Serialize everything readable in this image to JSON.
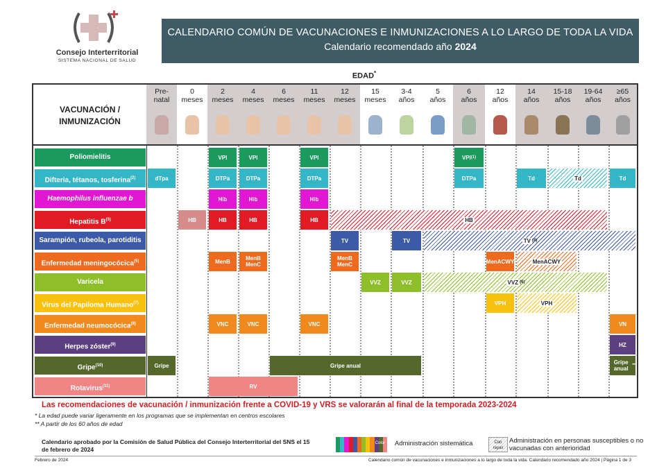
{
  "logo": {
    "name": "Consejo Interterritorial",
    "subtitle": "SISTEMA NACIONAL DE SALUD"
  },
  "title": {
    "line1": "CALENDARIO COMÚN DE VACUNACIONES E INMUNIZACIONES A LO LARGO DE TODA LA VIDA",
    "line2_prefix": "Calendario recomendado año",
    "line2_year": "2024"
  },
  "edad_label": "EDAD",
  "edad_mark": "*",
  "header_label_1": "VACUNACIÓN /",
  "header_label_2": "INMUNIZACIÓN",
  "columns": [
    {
      "l1": "Pre-",
      "l2": "natal"
    },
    {
      "l1": "0",
      "l2": "meses"
    },
    {
      "l1": "2",
      "l2": "meses"
    },
    {
      "l1": "4",
      "l2": "meses"
    },
    {
      "l1": "6",
      "l2": "meses"
    },
    {
      "l1": "11",
      "l2": "meses"
    },
    {
      "l1": "12",
      "l2": "meses"
    },
    {
      "l1": "15",
      "l2": "meses"
    },
    {
      "l1": "3-4",
      "l2": "años"
    },
    {
      "l1": "5",
      "l2": "años"
    },
    {
      "l1": "6",
      "l2": "años"
    },
    {
      "l1": "12",
      "l2": "años"
    },
    {
      "l1": "14",
      "l2": "años"
    },
    {
      "l1": "15-18",
      "l2": "años"
    },
    {
      "l1": "19-64",
      "l2": "años"
    },
    {
      "l1": "≥65",
      "l2": "años"
    }
  ],
  "rows": [
    {
      "label": "Poliomielitis",
      "sup": "",
      "color": "#1a9a5c"
    },
    {
      "label": "Difteria, tétanos, tosferina",
      "sup": "(2)",
      "color": "#35b6c6"
    },
    {
      "label": "Haemophilus influenzae b",
      "sup": "",
      "color": "#e117d3"
    },
    {
      "label": "Hepatitis B",
      "sup": "(3)",
      "color": "#e11b24"
    },
    {
      "label": "Sarampión, rubeola, parotiditis",
      "sup": "",
      "color": "#3d5aa8"
    },
    {
      "label": "Enfermedad meningocócica",
      "sup": "(5)",
      "color": "#ee6a1e"
    },
    {
      "label": "Varicela",
      "sup": "",
      "color": "#8ebf2b"
    },
    {
      "label": "Virus del Papiloma Humano",
      "sup": "(7)",
      "color": "#f8c10e"
    },
    {
      "label": "Enfermedad neumocócica",
      "sup": "(8)",
      "color": "#f08a1c"
    },
    {
      "label": "Herpes zóster",
      "sup": "(9)",
      "color": "#5c3f81"
    },
    {
      "label": "Gripe",
      "sup": "(10)",
      "color": "#56672c"
    },
    {
      "label": "Rotavirus",
      "sup": "(11)",
      "color": "#ef8585"
    }
  ],
  "cells": [
    {
      "row": 0,
      "from": 2,
      "to": 2,
      "text": "VPI",
      "sup": ""
    },
    {
      "row": 0,
      "from": 3,
      "to": 3,
      "text": "VPI",
      "sup": ""
    },
    {
      "row": 0,
      "from": 5,
      "to": 5,
      "text": "VPI",
      "sup": ""
    },
    {
      "row": 0,
      "from": 10,
      "to": 10,
      "text": "VPI",
      "sup": "(1)"
    },
    {
      "row": 1,
      "from": 0,
      "to": 0,
      "text": "dTpa",
      "sup": ""
    },
    {
      "row": 1,
      "from": 2,
      "to": 2,
      "text": "DTPa",
      "sup": ""
    },
    {
      "row": 1,
      "from": 3,
      "to": 3,
      "text": "DTPa",
      "sup": ""
    },
    {
      "row": 1,
      "from": 5,
      "to": 5,
      "text": "DTPa",
      "sup": ""
    },
    {
      "row": 1,
      "from": 10,
      "to": 10,
      "text": "DTPa",
      "sup": ""
    },
    {
      "row": 1,
      "from": 12,
      "to": 12,
      "text": "Td",
      "sup": ""
    },
    {
      "row": 1,
      "from": 13,
      "to": 14,
      "text": "Td",
      "sup": "",
      "striped": true
    },
    {
      "row": 1,
      "from": 15,
      "to": 15,
      "text": "Td",
      "sup": ""
    },
    {
      "row": 2,
      "from": 2,
      "to": 2,
      "text": "Hib",
      "sup": ""
    },
    {
      "row": 2,
      "from": 3,
      "to": 3,
      "text": "Hib",
      "sup": ""
    },
    {
      "row": 2,
      "from": 5,
      "to": 5,
      "text": "Hib",
      "sup": ""
    },
    {
      "row": 3,
      "from": 1,
      "to": 1,
      "text": "HB",
      "sup": "",
      "light": true
    },
    {
      "row": 3,
      "from": 2,
      "to": 2,
      "text": "HB",
      "sup": ""
    },
    {
      "row": 3,
      "from": 3,
      "to": 3,
      "text": "HB",
      "sup": ""
    },
    {
      "row": 3,
      "from": 5,
      "to": 5,
      "text": "HB",
      "sup": ""
    },
    {
      "row": 3,
      "from": 6,
      "to": 14,
      "text": "HB",
      "sup": "",
      "striped": true
    },
    {
      "row": 4,
      "from": 6,
      "to": 6,
      "text": "TV",
      "sup": ""
    },
    {
      "row": 4,
      "from": 8,
      "to": 8,
      "text": "TV",
      "sup": ""
    },
    {
      "row": 4,
      "from": 9,
      "to": 15,
      "text": "TV",
      "sup": "(4)",
      "striped": true
    },
    {
      "row": 5,
      "from": 2,
      "to": 2,
      "text": "MenB",
      "sup": ""
    },
    {
      "row": 5,
      "from": 3,
      "to": 3,
      "text": "MenB MenC",
      "sup": ""
    },
    {
      "row": 5,
      "from": 6,
      "to": 6,
      "text": "MenB MenC",
      "sup": ""
    },
    {
      "row": 5,
      "from": 11,
      "to": 11,
      "text": "MenACWY",
      "sup": ""
    },
    {
      "row": 5,
      "from": 12,
      "to": 13,
      "text": "MenACWY",
      "sup": "",
      "striped": true
    },
    {
      "row": 6,
      "from": 7,
      "to": 7,
      "text": "VVZ",
      "sup": ""
    },
    {
      "row": 6,
      "from": 8,
      "to": 8,
      "text": "VVZ",
      "sup": ""
    },
    {
      "row": 6,
      "from": 9,
      "to": 14,
      "text": "VVZ",
      "sup": "(6)",
      "striped": true
    },
    {
      "row": 7,
      "from": 11,
      "to": 11,
      "text": "VPH",
      "sup": ""
    },
    {
      "row": 7,
      "from": 12,
      "to": 13,
      "text": "VPH",
      "sup": "",
      "striped": true
    },
    {
      "row": 8,
      "from": 2,
      "to": 2,
      "text": "VNC",
      "sup": ""
    },
    {
      "row": 8,
      "from": 3,
      "to": 3,
      "text": "VNC",
      "sup": ""
    },
    {
      "row": 8,
      "from": 5,
      "to": 5,
      "text": "VNC",
      "sup": ""
    },
    {
      "row": 8,
      "from": 15,
      "to": 15,
      "text": "VN",
      "sup": ""
    },
    {
      "row": 9,
      "from": 15,
      "to": 15,
      "text": "HZ",
      "sup": ""
    },
    {
      "row": 10,
      "from": 0,
      "to": 0,
      "text": "Gripe",
      "sup": ""
    },
    {
      "row": 10,
      "from": 4,
      "to": 8,
      "text": "Gripe anual",
      "sup": ""
    },
    {
      "row": 10,
      "from": 15,
      "to": 15,
      "text": "Gripe anual",
      "sup": "**"
    },
    {
      "row": 11,
      "from": 2,
      "to": 4,
      "text": "RV",
      "sup": ""
    }
  ],
  "covid_text": "Las recomendaciones de vacunación / inmunización frente a COVID-19 y VRS se valorarán al final de la temporada 2023-2024",
  "note1": "* La edad puede variar ligeramente en los programas que se implementan en centros escolares",
  "note2": "** A partir de los 60 años de edad",
  "approval": "Calendario aprobado por la Comisión de Salud Pública del Consejo Interterritorial del SNS el 15 de febrero de 2024",
  "legend": {
    "color_word": "Color",
    "systematic": "Administración sistemática",
    "stripe_word": "Con rayas",
    "susceptible": "Administración en personas susceptibles o no vacunadas con anterioridad"
  },
  "footer": {
    "date": "Febrero de 2024",
    "page": "Calendario común de vacunaciones e inmunizaciones a lo largo de toda la vida. Calendario recomendado año 2024 | Página 1 de 3"
  }
}
